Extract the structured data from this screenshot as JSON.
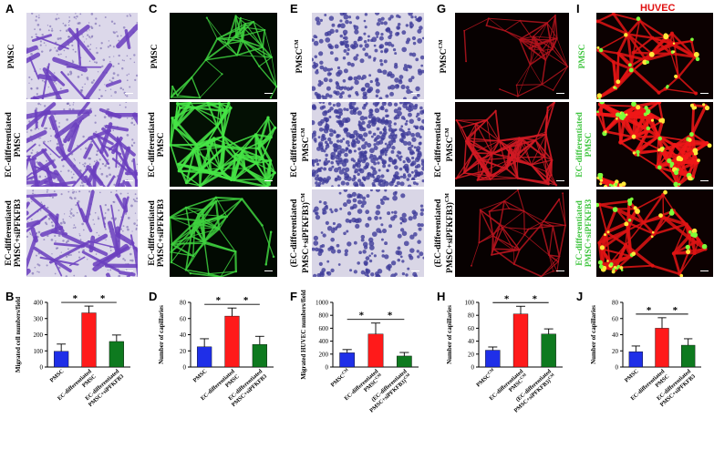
{
  "panels": {
    "A": "A",
    "C": "C",
    "E": "E",
    "G": "G",
    "I": "I",
    "B": "B",
    "D": "D",
    "F": "F",
    "H": "H",
    "J": "J"
  },
  "huvec_label": "HUVEC",
  "row_labels": {
    "A": [
      [
        "PMSC"
      ],
      [
        "EC-differentiated",
        "PMSC"
      ],
      [
        "EC-differentiated",
        "PMSC+siPFKFB3"
      ]
    ],
    "C": [
      [
        "PMSC"
      ],
      [
        "EC-differentiated",
        "PMSC"
      ],
      [
        "EC-differentiated",
        "PMSC+siPFKFB3"
      ]
    ],
    "E": [
      [
        "PMSC^CM"
      ],
      [
        "EC-differentiated",
        "PMSC^CM"
      ],
      [
        "(EC-differentiated",
        "PMSC+siPFKFB3)^CM"
      ]
    ],
    "G": [
      [
        "PMSC^CM"
      ],
      [
        "EC-differentiated",
        "PMSC^CM"
      ],
      [
        "(EC-differentiated",
        "PMSC+siPFKFB3)^CM"
      ]
    ],
    "I": [
      [
        "PMSC"
      ],
      [
        "EC-differentiated",
        "PMSC"
      ],
      [
        "EC-differentiated",
        "PMSC+siPFKFB3"
      ]
    ]
  },
  "colors": {
    "blue": "#1f2fe8",
    "red": "#ff1a1a",
    "green": "#0e7a1f",
    "huvec_red": "#e01010",
    "label_green": "#3cc43c"
  },
  "chart_data": [
    {
      "type": "bar",
      "panel": "B",
      "ylabel": "Migrated cell numbers/field",
      "yticks": [
        0,
        100,
        200,
        300,
        400
      ],
      "ylim": [
        0,
        400
      ],
      "categories": [
        "PMSC",
        "EC-differentiated\nPMSC",
        "EC-differentiated\nPMSC+siPFKFB3"
      ],
      "values": [
        97,
        335,
        158
      ],
      "errors": [
        45,
        42,
        40
      ],
      "significance": [
        "*",
        "*"
      ]
    },
    {
      "type": "bar",
      "panel": "D",
      "ylabel": "Number of capillaries",
      "yticks": [
        0,
        20,
        40,
        60,
        80
      ],
      "ylim": [
        0,
        80
      ],
      "categories": [
        "PMSC",
        "EC-differentiated\nPMSC",
        "EC-differentiated\nPMSC+siPFKFB3"
      ],
      "values": [
        25,
        63,
        28
      ],
      "errors": [
        10,
        10,
        10
      ],
      "significance": [
        "*",
        "*"
      ]
    },
    {
      "type": "bar",
      "panel": "F",
      "ylabel": "Migrated HUVEC numbers/field",
      "yticks": [
        0,
        200,
        400,
        600,
        800,
        1000
      ],
      "ylim": [
        0,
        1000
      ],
      "categories": [
        "PMSC^CM",
        "EC-differentiated\nPMSC^CM",
        "(EC-differentiated\nPMSC+siPFKFB3)^CM"
      ],
      "values": [
        220,
        510,
        170
      ],
      "errors": [
        50,
        170,
        55
      ],
      "significance": [
        "*",
        "*"
      ]
    },
    {
      "type": "bar",
      "panel": "H",
      "ylabel": "Number of capillaries",
      "yticks": [
        0,
        20,
        40,
        60,
        80,
        100
      ],
      "ylim": [
        0,
        100
      ],
      "categories": [
        "PMSC^CM",
        "EC-differentiated\nPMSC^CM",
        "(EC-differentiated\nPMSC+siPFKFB3)^CM"
      ],
      "values": [
        26,
        82,
        51
      ],
      "errors": [
        5,
        12,
        8
      ],
      "significance": [
        "*",
        "*"
      ]
    },
    {
      "type": "bar",
      "panel": "J",
      "ylabel": "Number of capillaries",
      "yticks": [
        0,
        20,
        40,
        60,
        80
      ],
      "ylim": [
        0,
        80
      ],
      "categories": [
        "PMSC",
        "EC-differentiated\nPMSC",
        "EC-differentiated\nPMSC+siPFKFB3"
      ],
      "values": [
        19,
        48,
        27
      ],
      "errors": [
        7,
        13,
        8
      ],
      "significance": [
        "*",
        "*"
      ]
    }
  ]
}
